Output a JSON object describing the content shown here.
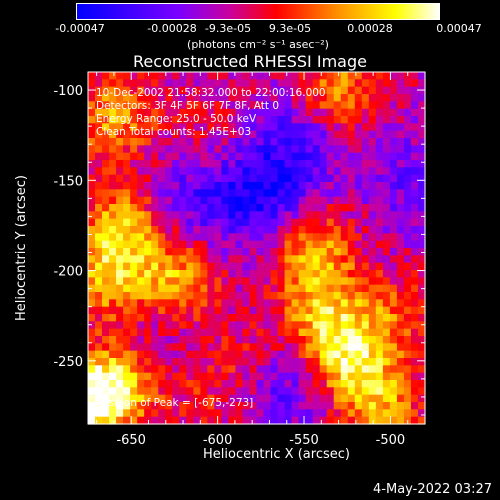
{
  "colorbar": {
    "ticks": [
      "-0.00047",
      "-0.00028",
      "-9.3e-05",
      "9.3e-05",
      "0.00028",
      "0.00047"
    ],
    "tick_values": [
      -0.00047,
      -0.00028,
      -9.3e-05,
      9.3e-05,
      0.00028,
      0.00047
    ],
    "range": [
      -0.00047,
      0.00047
    ],
    "units": "(photons cm⁻² s⁻¹ asec⁻²)",
    "colors": [
      "#0000ff",
      "#7a00ff",
      "#c800a0",
      "#ff0000",
      "#ff9000",
      "#ffff00",
      "#ffffff"
    ]
  },
  "annotations": {
    "time": "10-Dec-2002 21:58:32.000 to 22:00:16.000",
    "detectors": "Detectors: 3F 4F 5F 6F 7F 8F, Att 0",
    "energy": "Energy Range: 25.0 - 50.0 keV",
    "clean": "Clean    Total counts: 1.45E+03",
    "peak": "Position of Peak = [-675,-273]"
  },
  "footer": {
    "date": "4-May-2022 03:27"
  },
  "chart_data": {
    "type": "heatmap",
    "title": "Reconstructed RHESSI Image",
    "xlabel": "Heliocentric X (arcsec)",
    "ylabel": "Heliocentric Y (arcsec)",
    "xlim": [
      -675,
      -480
    ],
    "ylim": [
      -285,
      -90
    ],
    "xticks": [
      -650,
      -600,
      -550,
      -500
    ],
    "yticks": [
      -100,
      -150,
      -200,
      -250
    ],
    "xtick_labels": [
      "-650",
      "-600",
      "-550",
      "-500"
    ],
    "ytick_labels": [
      "-100",
      "-150",
      "-200",
      "-250"
    ],
    "peak": [
      -675,
      -273
    ],
    "grid_size": 48,
    "blobs": [
      {
        "x": -660,
        "y": -115,
        "value": 0.0003
      },
      {
        "x": -655,
        "y": -175,
        "value": 0.00034
      },
      {
        "x": -665,
        "y": -205,
        "value": 0.00032
      },
      {
        "x": -675,
        "y": -273,
        "value": 0.00047
      },
      {
        "x": -655,
        "y": -260,
        "value": 0.00036
      },
      {
        "x": -625,
        "y": -205,
        "value": 0.00033
      },
      {
        "x": -605,
        "y": -120,
        "value": 0.0001
      },
      {
        "x": -530,
        "y": -100,
        "value": 0.00028
      },
      {
        "x": -545,
        "y": -190,
        "value": 0.00035
      },
      {
        "x": -540,
        "y": -225,
        "value": 0.0003
      },
      {
        "x": -525,
        "y": -250,
        "value": 0.00038
      },
      {
        "x": -505,
        "y": -275,
        "value": 0.0003
      },
      {
        "x": -500,
        "y": -225,
        "value": 0.0002
      },
      {
        "x": -585,
        "y": -250,
        "value": 0.00012
      },
      {
        "x": -610,
        "y": -270,
        "value": 0.0001
      }
    ],
    "dips": [
      {
        "x": -575,
        "y": -160,
        "value": -0.0003
      },
      {
        "x": -555,
        "y": -130,
        "value": -0.00022
      },
      {
        "x": -615,
        "y": -160,
        "value": -0.00018
      },
      {
        "x": -560,
        "y": -265,
        "value": -0.0002
      },
      {
        "x": -640,
        "y": -240,
        "value": -0.00012
      },
      {
        "x": -490,
        "y": -150,
        "value": -0.00015
      }
    ]
  }
}
